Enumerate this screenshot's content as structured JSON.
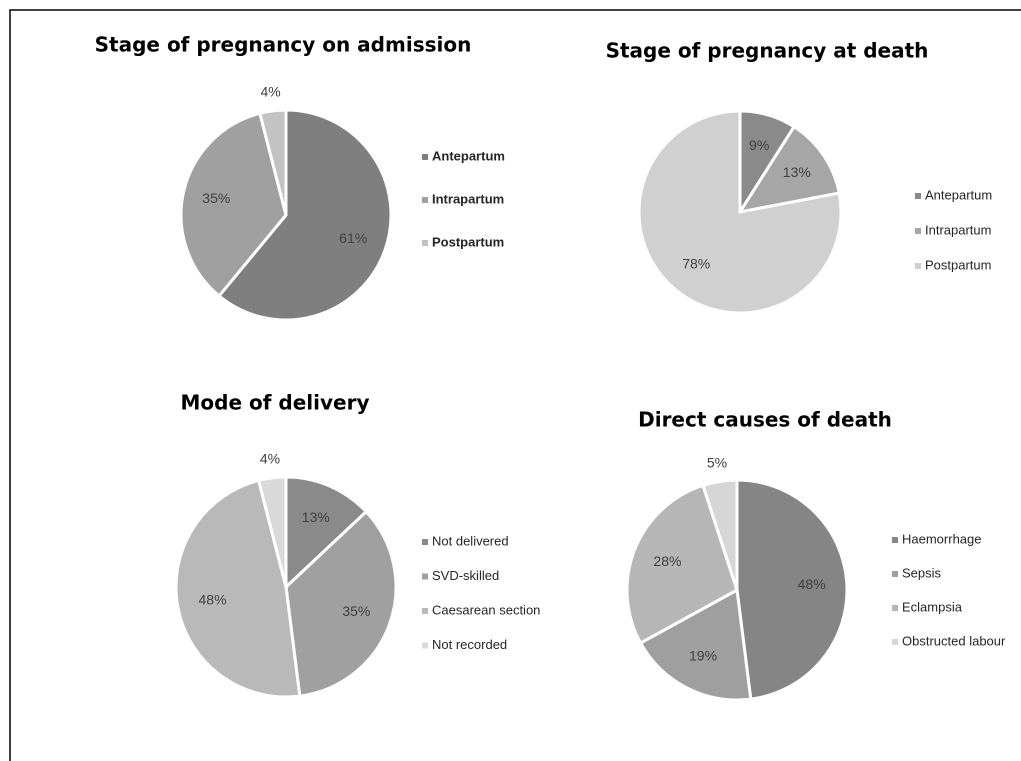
{
  "chart_data": [
    {
      "type": "pie",
      "title": "Stage of pregnancy on admission",
      "categories": [
        "Antepartum",
        "Intrapartum",
        "Postpartum"
      ],
      "values": [
        61,
        35,
        4
      ],
      "value_labels": [
        "61%",
        "35%",
        "4%"
      ],
      "colors": [
        "#7f7f7f",
        "#a0a0a0",
        "#c3c3c3"
      ]
    },
    {
      "type": "pie",
      "title": "Stage of pregnancy at death",
      "categories": [
        "Antepartum",
        "Intrapartum",
        "Postpartum"
      ],
      "values": [
        9,
        13,
        78
      ],
      "value_labels": [
        "9%",
        "13%",
        "78%"
      ],
      "colors": [
        "#8a8a8a",
        "#a6a6a6",
        "#d0d0d0"
      ]
    },
    {
      "type": "pie",
      "title": "Mode of delivery",
      "categories": [
        "Not delivered",
        "SVD-skilled",
        "Caesarean section",
        "Not recorded"
      ],
      "values": [
        13,
        35,
        48,
        4
      ],
      "value_labels": [
        "13%",
        "35%",
        "48%",
        "4%"
      ],
      "colors": [
        "#8a8a8a",
        "#a0a0a0",
        "#b9b9b9",
        "#d9d9d9"
      ]
    },
    {
      "type": "pie",
      "title": "Direct causes of death",
      "categories": [
        "Haemorrhage",
        "Sepsis",
        "Eclampsia",
        "Obstructed labour"
      ],
      "values": [
        48,
        19,
        28,
        5
      ],
      "value_labels": [
        "48%",
        "19%",
        "28%",
        "5%"
      ],
      "colors": [
        "#858585",
        "#9f9f9f",
        "#b6b6b6",
        "#d6d6d6"
      ]
    }
  ]
}
